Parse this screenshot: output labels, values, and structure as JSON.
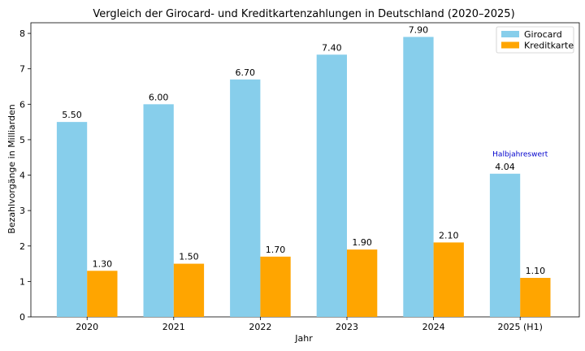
{
  "chart_data": {
    "type": "bar",
    "title": "Vergleich der Girocard- und Kreditkartenzahlungen in Deutschland (2020–2025)",
    "xlabel": "Jahr",
    "ylabel": "Bezahlvorgänge in Milliarden",
    "categories": [
      "2020",
      "2021",
      "2022",
      "2023",
      "2024",
      "2025 (H1)"
    ],
    "series": [
      {
        "name": "Girocard",
        "color": "#87ceeb",
        "values": [
          5.5,
          6.0,
          6.7,
          7.4,
          7.9,
          4.04
        ],
        "labels": [
          "5.50",
          "6.00",
          "6.70",
          "7.40",
          "7.90",
          "4.04"
        ]
      },
      {
        "name": "Kreditkarte",
        "color": "#ffa500",
        "values": [
          1.3,
          1.5,
          1.7,
          1.9,
          2.1,
          1.1
        ],
        "labels": [
          "1.30",
          "1.50",
          "1.70",
          "1.90",
          "2.10",
          "1.10"
        ]
      }
    ],
    "ylim": [
      0,
      8.3
    ],
    "yticks": [
      "0",
      "1",
      "2",
      "3",
      "4",
      "5",
      "6",
      "7",
      "8"
    ],
    "grid": false,
    "legend_position": "top-right",
    "annotation": {
      "text": "Halbjahreswert",
      "category": "2025 (H1)",
      "y": 4.6,
      "color": "#0000cd"
    }
  }
}
